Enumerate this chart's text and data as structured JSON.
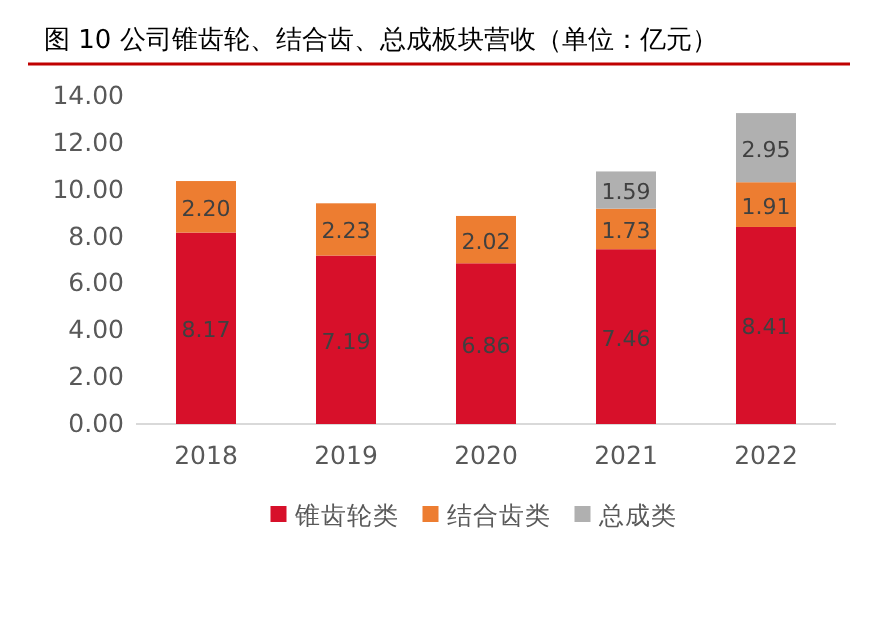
{
  "chart_data": {
    "type": "bar",
    "title": "图 10 公司锥齿轮、结合齿、总成板块营收（单位：亿元）",
    "categories": [
      "2018",
      "2019",
      "2020",
      "2021",
      "2022"
    ],
    "stacked": true,
    "legend": "bottom",
    "ylim": [
      0,
      14
    ],
    "yticks": [
      {
        "value": 0,
        "label": "0.00"
      },
      {
        "value": 2,
        "label": "2.00"
      },
      {
        "value": 4,
        "label": "4.00"
      },
      {
        "value": 6,
        "label": "6.00"
      },
      {
        "value": 8,
        "label": "8.00"
      },
      {
        "value": 10,
        "label": "10.00"
      },
      {
        "value": 12,
        "label": "12.00"
      },
      {
        "value": 14,
        "label": "14.00"
      }
    ],
    "series": [
      {
        "name": "锥齿轮类",
        "color": "#d7102a",
        "values": [
          8.17,
          7.19,
          6.86,
          7.46,
          8.41
        ],
        "value_labels": [
          "8.17",
          "7.19",
          "6.86",
          "7.46",
          "8.41"
        ]
      },
      {
        "name": "结合齿类",
        "color": "#ed7d31",
        "values": [
          2.2,
          2.23,
          2.02,
          1.73,
          1.91
        ],
        "value_labels": [
          "2.20",
          "2.23",
          "2.02",
          "1.73",
          "1.91"
        ]
      },
      {
        "name": "总成类",
        "color": "#b0b0b0",
        "values": [
          null,
          null,
          null,
          1.59,
          2.95
        ],
        "value_labels": [
          null,
          null,
          null,
          "1.59",
          "2.95"
        ]
      }
    ]
  }
}
